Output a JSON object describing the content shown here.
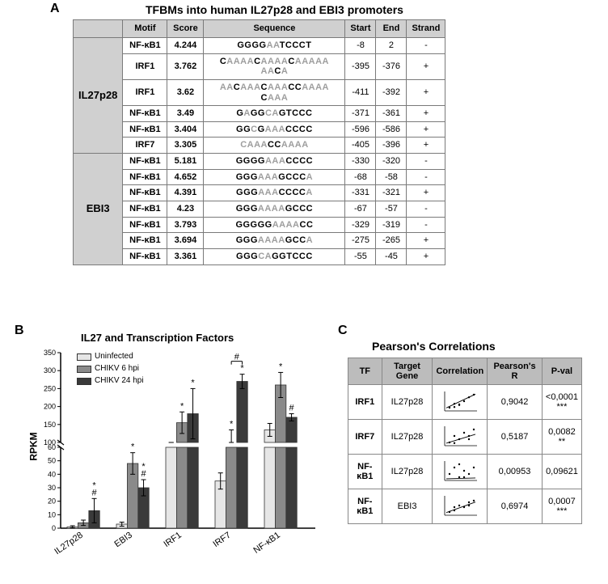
{
  "panelA": {
    "label": "A",
    "title": "TFBMs into human IL27p28 and EBI3 promoters",
    "columns": [
      "Motif",
      "Score",
      "Sequence",
      "Start",
      "End",
      "Strand"
    ],
    "groups": [
      {
        "name": "IL27p28",
        "rows": [
          {
            "motif": "NF-κB1",
            "score": "4.244",
            "seq": [
              [
                "GGGG",
                "b"
              ],
              [
                "AA",
                "g"
              ],
              [
                "TCCCT",
                "b"
              ]
            ],
            "start": "-8",
            "end": "2",
            "strand": "-"
          },
          {
            "motif": "IRF1",
            "score": "3.762",
            "seq": [
              [
                "C",
                "b"
              ],
              [
                "AAAA",
                "g"
              ],
              [
                "C",
                "b"
              ],
              [
                "AAAA",
                "g"
              ],
              [
                "C",
                "b"
              ],
              [
                "AAAAA\nAA",
                "g"
              ],
              [
                "C",
                "b"
              ],
              [
                "A",
                "g"
              ]
            ],
            "start": "-395",
            "end": "-376",
            "strand": "+"
          },
          {
            "motif": "IRF1",
            "score": "3.62",
            "seq": [
              [
                "AA",
                "g"
              ],
              [
                "C",
                "b"
              ],
              [
                "AAA",
                "g"
              ],
              [
                "C",
                "b"
              ],
              [
                "AAA",
                "g"
              ],
              [
                "CC",
                "b"
              ],
              [
                "AAAA\n",
                "g"
              ],
              [
                "C",
                "b"
              ],
              [
                "AAA",
                "g"
              ]
            ],
            "start": "-411",
            "end": "-392",
            "strand": "+"
          },
          {
            "motif": "NF-κB1",
            "score": "3.49",
            "seq": [
              [
                "G",
                "b"
              ],
              [
                "A",
                "g"
              ],
              [
                "GG",
                "b"
              ],
              [
                "CA",
                "g"
              ],
              [
                "GTCCC",
                "b"
              ]
            ],
            "start": "-371",
            "end": "-361",
            "strand": "+"
          },
          {
            "motif": "NF-κB1",
            "score": "3.404",
            "seq": [
              [
                "GG",
                "b"
              ],
              [
                "C",
                "g"
              ],
              [
                "G",
                "b"
              ],
              [
                "AAA",
                "g"
              ],
              [
                "CCCC",
                "b"
              ]
            ],
            "start": "-596",
            "end": "-586",
            "strand": "+"
          },
          {
            "motif": "IRF7",
            "score": "3.305",
            "seq": [
              [
                "C",
                "g"
              ],
              [
                "AAA",
                "g"
              ],
              [
                "CC",
                "b"
              ],
              [
                "AAAA",
                "g"
              ]
            ],
            "start": "-405",
            "end": "-396",
            "strand": "+"
          }
        ]
      },
      {
        "name": "EBI3",
        "rows": [
          {
            "motif": "NF-κB1",
            "score": "5.181",
            "seq": [
              [
                "GGGG",
                "b"
              ],
              [
                "AAA",
                "g"
              ],
              [
                "CCCC",
                "b"
              ]
            ],
            "start": "-330",
            "end": "-320",
            "strand": "-"
          },
          {
            "motif": "NF-κB1",
            "score": "4.652",
            "seq": [
              [
                "GGG",
                "b"
              ],
              [
                "AAA",
                "g"
              ],
              [
                "GCCC",
                "b"
              ],
              [
                "A",
                "g"
              ]
            ],
            "start": "-68",
            "end": "-58",
            "strand": "-"
          },
          {
            "motif": "NF-κB1",
            "score": "4.391",
            "seq": [
              [
                "GGG",
                "b"
              ],
              [
                "AAA",
                "g"
              ],
              [
                "CCCC",
                "b"
              ],
              [
                "A",
                "g"
              ]
            ],
            "start": "-331",
            "end": "-321",
            "strand": "+"
          },
          {
            "motif": "NF-κB1",
            "score": "4.23",
            "seq": [
              [
                "GGG",
                "b"
              ],
              [
                "AAAA",
                "g"
              ],
              [
                "GCCC",
                "b"
              ]
            ],
            "start": "-67",
            "end": "-57",
            "strand": "-"
          },
          {
            "motif": "NF-κB1",
            "score": "3.793",
            "seq": [
              [
                "GGGGG",
                "b"
              ],
              [
                "AAAA",
                "g"
              ],
              [
                "CC",
                "b"
              ]
            ],
            "start": "-329",
            "end": "-319",
            "strand": "-"
          },
          {
            "motif": "NF-κB1",
            "score": "3.694",
            "seq": [
              [
                "GGG",
                "b"
              ],
              [
                "AAAA",
                "g"
              ],
              [
                "GCC",
                "b"
              ],
              [
                "A",
                "g"
              ]
            ],
            "start": "-275",
            "end": "-265",
            "strand": "+"
          },
          {
            "motif": "NF-κB1",
            "score": "3.361",
            "seq": [
              [
                "GGG",
                "b"
              ],
              [
                "CA",
                "g"
              ],
              [
                "GGTCCC",
                "b"
              ]
            ],
            "start": "-55",
            "end": "-45",
            "strand": "+"
          }
        ]
      }
    ]
  },
  "panelB": {
    "label": "B",
    "title": "IL27 and Transcription Factors",
    "ylabel": "RPKM",
    "legend": [
      {
        "label": "Uninfected",
        "color": "#e6e6e6"
      },
      {
        "label": "CHIKV 6 hpi",
        "color": "#8a8a8a"
      },
      {
        "label": "CHIKV 24 hpi",
        "color": "#3a3a3a"
      }
    ],
    "categories": [
      "IL27p28",
      "EBI3",
      "IRF1",
      "IRF7",
      "NF-κB1"
    ],
    "series_colors": [
      "#e6e6e6",
      "#8a8a8a",
      "#3a3a3a"
    ],
    "values": [
      [
        1,
        4,
        13
      ],
      [
        3,
        48,
        30
      ],
      [
        80,
        155,
        180
      ],
      [
        35,
        95,
        270
      ],
      [
        135,
        260,
        170
      ]
    ],
    "errors": [
      [
        0.8,
        2,
        9
      ],
      [
        1.5,
        8,
        6
      ],
      [
        6,
        30,
        70
      ],
      [
        6,
        40,
        20
      ],
      [
        18,
        35,
        10
      ]
    ],
    "annotations": [
      {
        "group": 0,
        "bar": 2,
        "marks": [
          "#",
          "*"
        ]
      },
      {
        "group": 1,
        "bar": 1,
        "marks": [
          "*"
        ]
      },
      {
        "group": 1,
        "bar": 2,
        "marks": [
          "#",
          "*"
        ]
      },
      {
        "group": 2,
        "bar": 1,
        "marks": [
          "*"
        ]
      },
      {
        "group": 2,
        "bar": 2,
        "marks": [
          "*"
        ]
      },
      {
        "group": 3,
        "bar": 1,
        "marks": [
          "*"
        ]
      },
      {
        "group": 3,
        "bar": 2,
        "marks": [
          "*"
        ]
      },
      {
        "group": 4,
        "bar": 1,
        "marks": [
          "*"
        ]
      },
      {
        "group": 4,
        "bar": 2,
        "marks": [
          "#"
        ]
      }
    ],
    "brackets": [
      {
        "group": 3,
        "from": 1,
        "to": 2,
        "mark": "#"
      }
    ],
    "lower_max": 60,
    "lower_ticks": [
      0,
      10,
      20,
      30,
      40,
      50,
      60
    ],
    "upper_min": 100,
    "upper_max": 350,
    "upper_ticks": [
      100,
      150,
      200,
      250,
      300,
      350
    ],
    "axis_color": "#000000",
    "tick_fontsize": 9,
    "bar_border": "#333333"
  },
  "panelC": {
    "label": "C",
    "title": "Pearson's Correlations",
    "columns": [
      "TF",
      "Target Gene",
      "Correlation",
      "Pearson's R",
      "P-val"
    ],
    "rows": [
      {
        "tf": "IRF1",
        "target": "IL27p28",
        "r": "0,9042",
        "p": "<0,0001",
        "stars": "***",
        "pts": [
          [
            1,
            1
          ],
          [
            2,
            1.2
          ],
          [
            3,
            2
          ],
          [
            4,
            3
          ],
          [
            5,
            4.2
          ],
          [
            6,
            5
          ],
          [
            2,
            2.2
          ],
          [
            3,
            1.8
          ]
        ],
        "slope": 0.85
      },
      {
        "tf": "IRF7",
        "target": "IL27p28",
        "r": "0,5187",
        "p": "0,0082",
        "stars": "**",
        "pts": [
          [
            1,
            1
          ],
          [
            2,
            3
          ],
          [
            3,
            2
          ],
          [
            4,
            4
          ],
          [
            5,
            3
          ],
          [
            6,
            5
          ],
          [
            2,
            0.8
          ],
          [
            5,
            2
          ]
        ],
        "slope": 0.55
      },
      {
        "tf": "NF-κB1",
        "target": "IL27p28",
        "r": "0,00953",
        "p": "0,09621",
        "stars": "",
        "pts": [
          [
            1,
            2
          ],
          [
            2,
            4
          ],
          [
            3,
            1
          ],
          [
            4,
            3
          ],
          [
            5,
            2
          ],
          [
            6,
            4
          ],
          [
            3,
            5
          ],
          [
            4,
            1
          ]
        ],
        "slope": 0.05
      },
      {
        "tf": "NF-κB1",
        "target": "EBI3",
        "r": "0,6974",
        "p": "0,0007",
        "stars": "***",
        "pts": [
          [
            1,
            1
          ],
          [
            2,
            1.5
          ],
          [
            3,
            3
          ],
          [
            4,
            2.5
          ],
          [
            5,
            4
          ],
          [
            6,
            4.5
          ],
          [
            2,
            2.5
          ],
          [
            5,
            3
          ]
        ],
        "slope": 0.65
      }
    ]
  }
}
